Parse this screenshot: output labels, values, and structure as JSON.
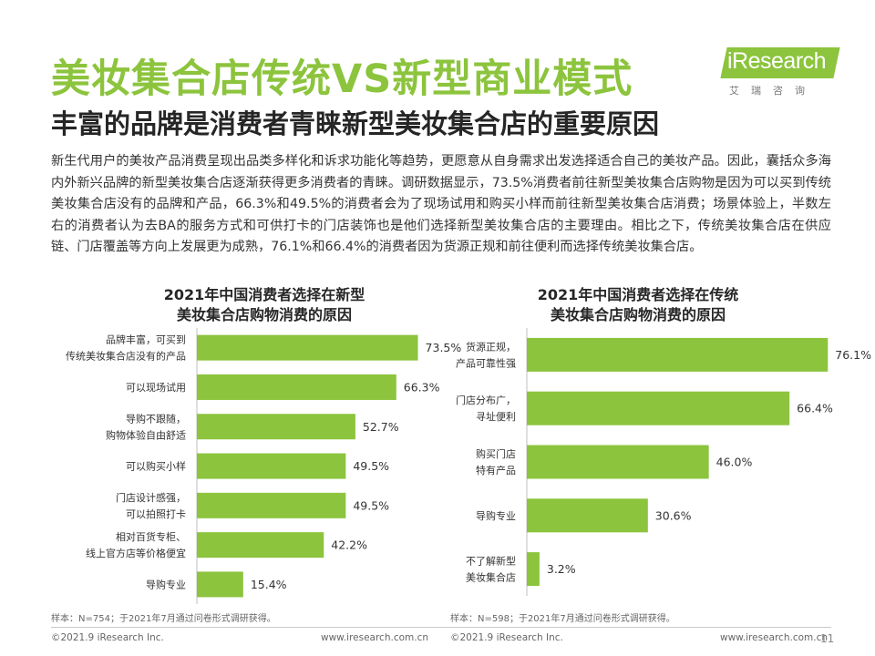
{
  "header": {
    "title": "美妆集合店传统VS新型商业模式",
    "subtitle": "丰富的品牌是消费者青睐新型美妆集合店的重要原因",
    "logo_text": "iResearch",
    "logo_sub": "艾瑞咨询"
  },
  "body_text": "新生代用户的美妆产品消费呈现出品类多样化和诉求功能化等趋势，更愿意从自身需求出发选择适合自己的美妆产品。因此，囊括众多海内外新兴品牌的新型美妆集合店逐渐获得更多消费者的青睐。调研数据显示，73.5%消费者前往新型美妆集合店购物是因为可以买到传统美妆集合店没有的品牌和产品，66.3%和49.5%的消费者会为了现场试用和购买小样而前往新型美妆集合店消费；场景体验上，半数左右的消费者认为去BA的服务方式和可供打卡的门店装饰也是他们选择新型美妆集合店的主要理由。相比之下，传统美妆集合店在供应链、门店覆盖等方向上发展更为成熟，76.1%和66.4%的消费者因为货源正规和前往便利而选择传统美妆集合店。",
  "colors": {
    "accent": "#8cc43d"
  },
  "chart_data": [
    {
      "type": "bar",
      "orientation": "horizontal",
      "title_line1": "2021年中国消费者选择在新型",
      "title_line2": "美妆集合店购物消费的原因",
      "categories": [
        [
          "品牌丰富，可买到",
          "传统美妆集合店没有的产品"
        ],
        [
          "可以现场试用"
        ],
        [
          "导购不跟随，",
          "购物体验自由舒适"
        ],
        [
          "可以购买小样"
        ],
        [
          "门店设计感强，",
          "可以拍照打卡"
        ],
        [
          "相对百货专柜、",
          "线上官方店等价格便宜"
        ],
        [
          "导购专业"
        ]
      ],
      "values": [
        73.5,
        66.3,
        52.7,
        49.5,
        49.5,
        42.2,
        15.4
      ],
      "value_labels": [
        "73.5%",
        "66.3%",
        "52.7%",
        "49.5%",
        "49.5%",
        "42.2%",
        "15.4%"
      ],
      "xlim": [
        0,
        100
      ],
      "note": "样本：N=754；于2021年7月通过问卷形式调研获得。"
    },
    {
      "type": "bar",
      "orientation": "horizontal",
      "title_line1": "2021年中国消费者选择在传统",
      "title_line2": "美妆集合店购物消费的原因",
      "categories": [
        [
          "货源正规，",
          "产品可靠性强"
        ],
        [
          "门店分布广，",
          "寻址便利"
        ],
        [
          "购买门店",
          "特有产品"
        ],
        [
          "导购专业"
        ],
        [
          "不了解新型",
          "美妆集合店"
        ]
      ],
      "values": [
        76.1,
        66.4,
        46.0,
        30.6,
        3.2
      ],
      "value_labels": [
        "76.1%",
        "66.4%",
        "46.0%",
        "30.6%",
        "3.2%"
      ],
      "xlim": [
        0,
        100
      ],
      "note": "样本：N=598；于2021年7月通过问卷形式调研获得。"
    }
  ],
  "footer": {
    "left_copyright": "©2021.9 iResearch Inc.",
    "left_url": "www.iresearch.com.cn",
    "right_copyright": "©2021.9 iResearch Inc.",
    "right_url": "www.iresearch.com.cn",
    "page_number": "11"
  }
}
